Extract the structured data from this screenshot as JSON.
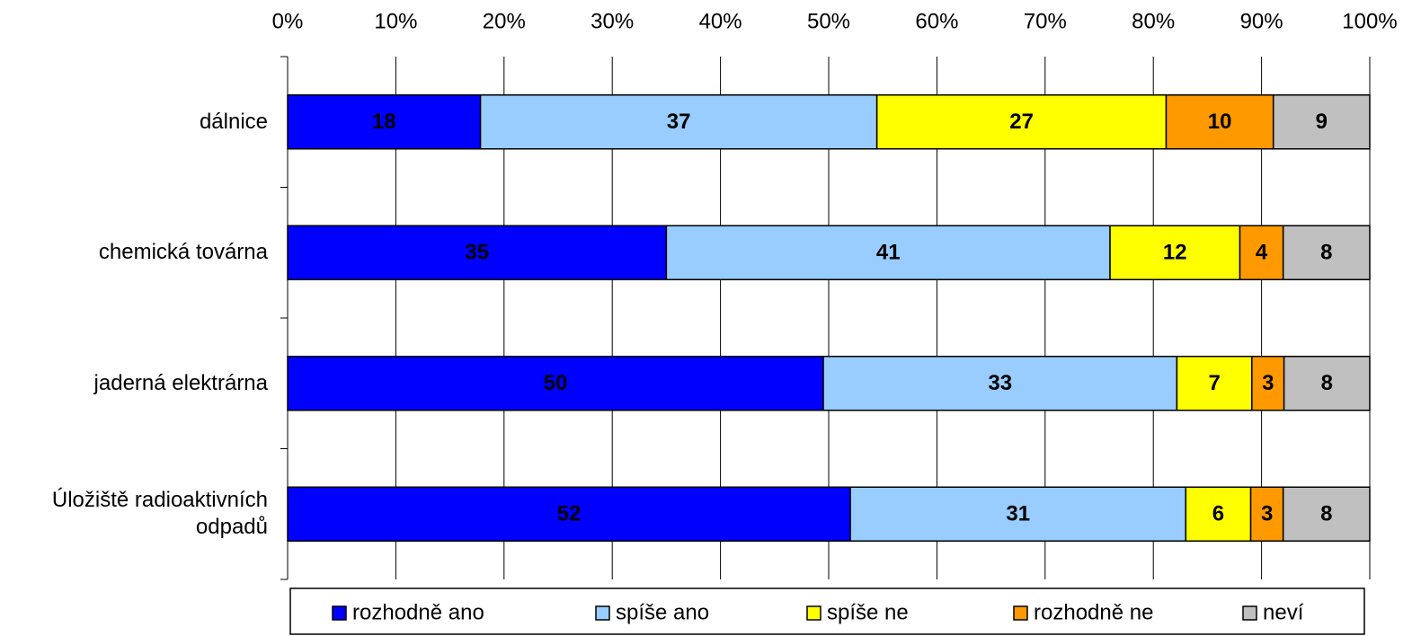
{
  "chart_data": {
    "type": "bar",
    "orientation": "horizontal",
    "stack": "percent",
    "categories": [
      "dálnice",
      "chemická továrna",
      "jaderná elektrárna",
      "Úložiště radioaktivních odpadů"
    ],
    "series": [
      {
        "name": "rozhodně ano",
        "color": "#0000ff",
        "values": [
          18,
          35,
          50,
          52
        ]
      },
      {
        "name": "spíše ano",
        "color": "#99ccff",
        "values": [
          37,
          41,
          33,
          31
        ]
      },
      {
        "name": "spíše ne",
        "color": "#ffff00",
        "values": [
          27,
          12,
          7,
          6
        ]
      },
      {
        "name": "rozhodně ne",
        "color": "#ff9900",
        "values": [
          10,
          4,
          3,
          3
        ]
      },
      {
        "name": "neví",
        "color": "#c0c0c0",
        "values": [
          9,
          8,
          8,
          8
        ]
      }
    ],
    "xlim": [
      0,
      100
    ],
    "xticks": [
      {
        "value": 0,
        "label": "0%"
      },
      {
        "value": 10,
        "label": "10%"
      },
      {
        "value": 20,
        "label": "20%"
      },
      {
        "value": 30,
        "label": "30%"
      },
      {
        "value": 40,
        "label": "40%"
      },
      {
        "value": 50,
        "label": "50%"
      },
      {
        "value": 60,
        "label": "60%"
      },
      {
        "value": 70,
        "label": "70%"
      },
      {
        "value": 80,
        "label": "80%"
      },
      {
        "value": 90,
        "label": "90%"
      },
      {
        "value": 100,
        "label": "100%"
      }
    ],
    "grid": true,
    "legend": "bottom"
  }
}
